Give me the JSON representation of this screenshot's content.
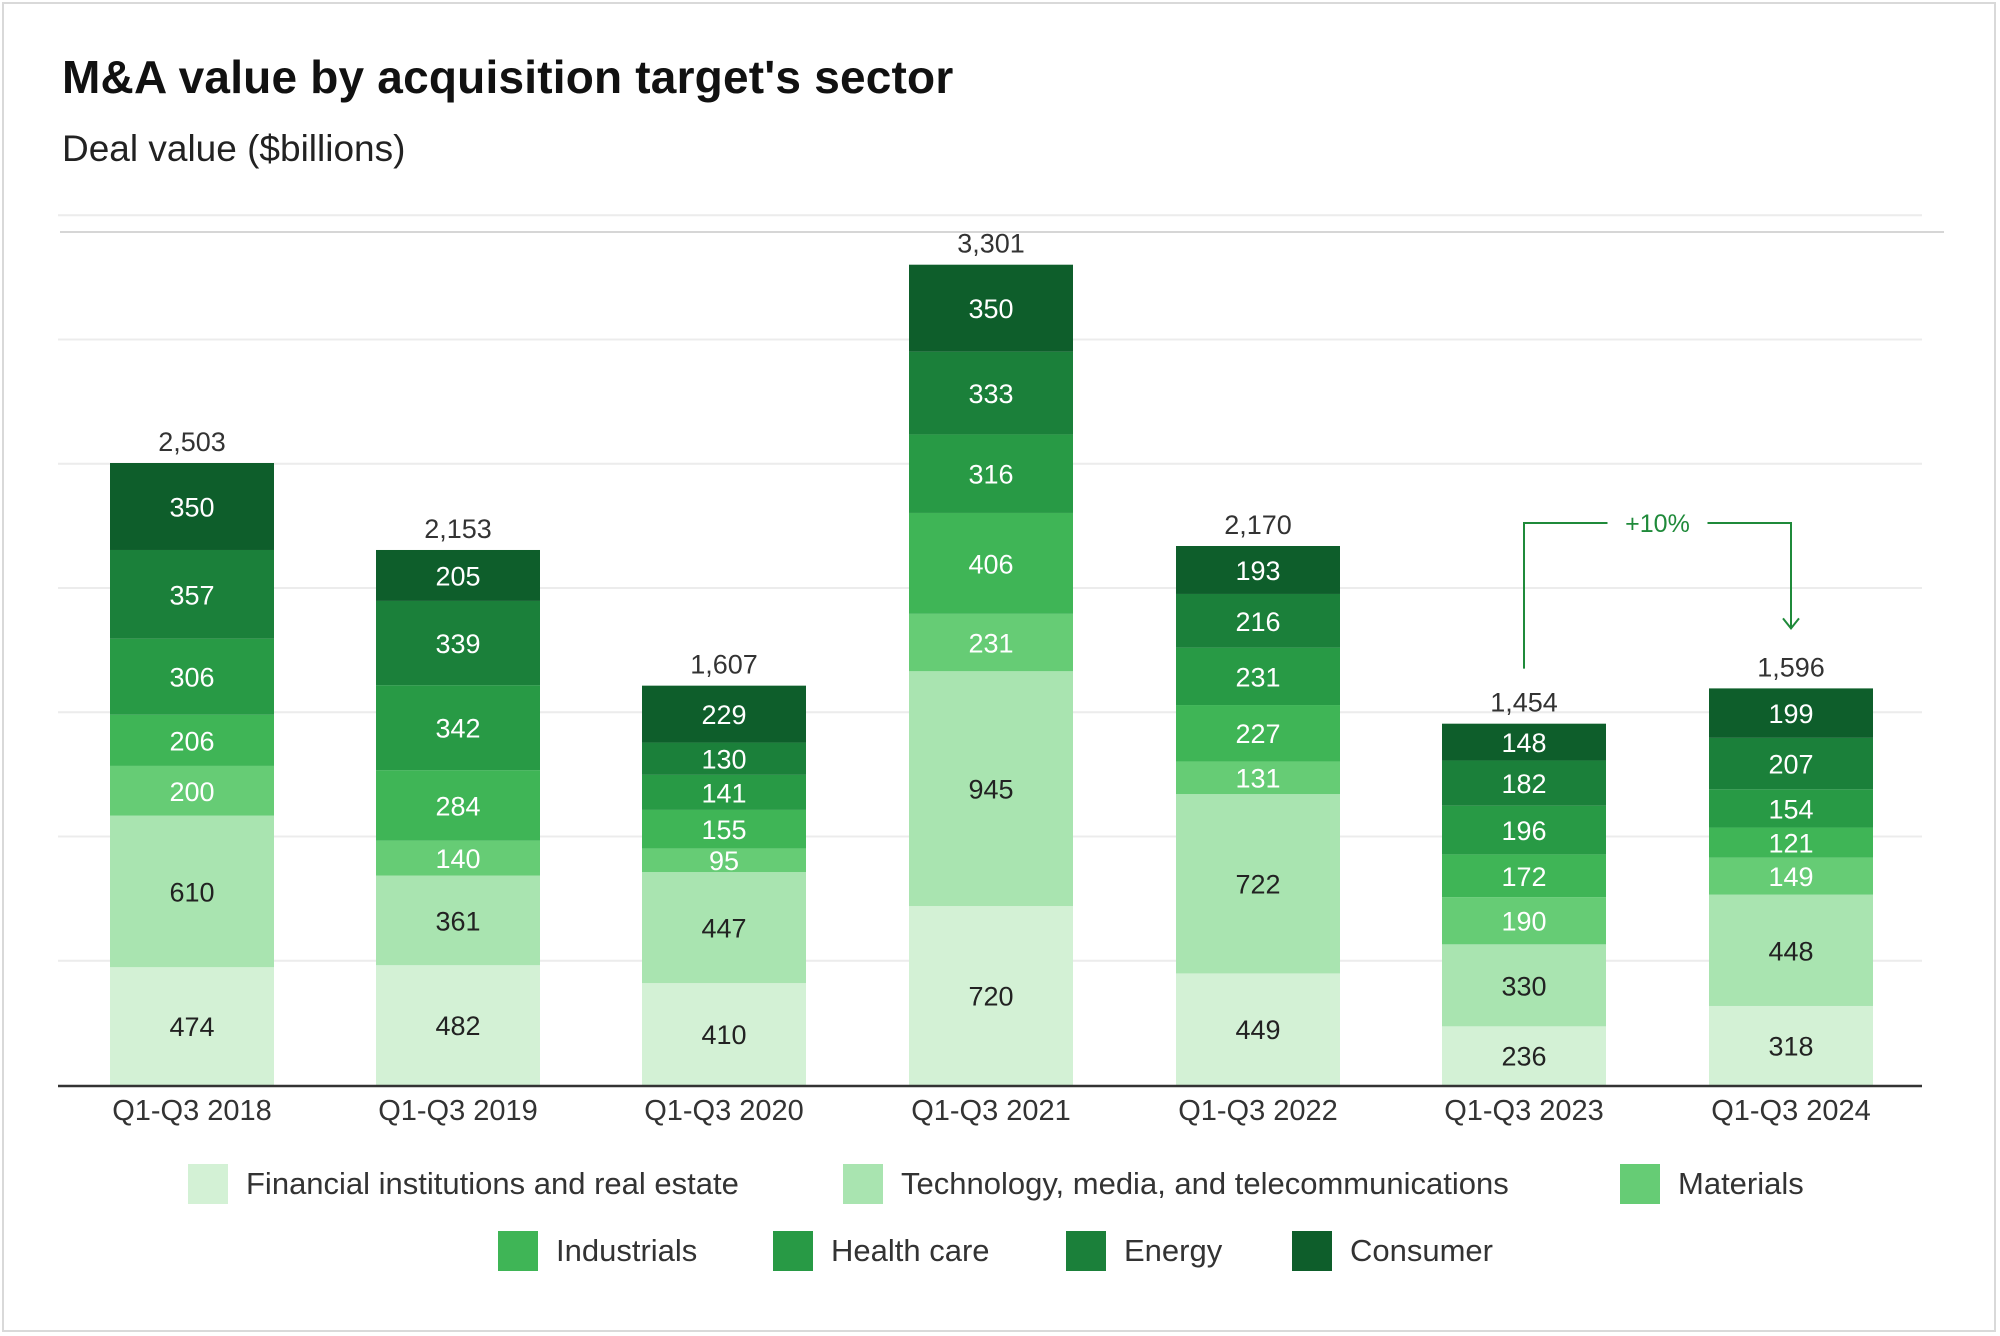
{
  "title": "M&A value by acquisition target's sector",
  "subtitle": "Deal value ($billions)",
  "annotation": {
    "label": "+10%",
    "from": "Q1-Q3 2023",
    "to": "Q1-Q3 2024"
  },
  "chart_data": {
    "type": "bar",
    "stacked": true,
    "title": "M&A value by acquisition target's sector",
    "ylabel": "Deal value ($billions)",
    "xlabel": "",
    "ylim": [
      0,
      3500
    ],
    "grid": true,
    "categories": [
      "Q1-Q3 2018",
      "Q1-Q3 2019",
      "Q1-Q3 2020",
      "Q1-Q3 2021",
      "Q1-Q3 2022",
      "Q1-Q3 2023",
      "Q1-Q3 2024"
    ],
    "totals": [
      2503,
      2153,
      1607,
      3301,
      2170,
      1454,
      1596
    ],
    "total_labels": [
      "2,503",
      "2,153",
      "1,607",
      "3,301",
      "2,170",
      "1,454",
      "1,596"
    ],
    "series": [
      {
        "name": "Financial institutions and real estate",
        "color": "#d3f1d5",
        "text_color": "#222222",
        "values": [
          474,
          482,
          410,
          720,
          449,
          236,
          318
        ]
      },
      {
        "name": "Technology, media, and telecommunications",
        "color": "#a9e4b0",
        "text_color": "#222222",
        "values": [
          610,
          361,
          447,
          945,
          722,
          330,
          448
        ]
      },
      {
        "name": "Materials",
        "color": "#66cc75",
        "text_color": "#ffffff",
        "values": [
          200,
          140,
          95,
          231,
          131,
          190,
          149
        ]
      },
      {
        "name": "Industrials",
        "color": "#3fb556",
        "text_color": "#ffffff",
        "values": [
          206,
          284,
          155,
          406,
          227,
          172,
          121
        ]
      },
      {
        "name": "Health care",
        "color": "#289a45",
        "text_color": "#ffffff",
        "values": [
          306,
          342,
          141,
          316,
          231,
          196,
          154
        ]
      },
      {
        "name": "Energy",
        "color": "#1b803a",
        "text_color": "#ffffff",
        "values": [
          357,
          339,
          130,
          333,
          216,
          182,
          207
        ]
      },
      {
        "name": "Consumer",
        "color": "#0e5e2b",
        "text_color": "#ffffff",
        "values": [
          350,
          205,
          229,
          350,
          193,
          148,
          199
        ]
      }
    ],
    "legend": "bottom"
  }
}
